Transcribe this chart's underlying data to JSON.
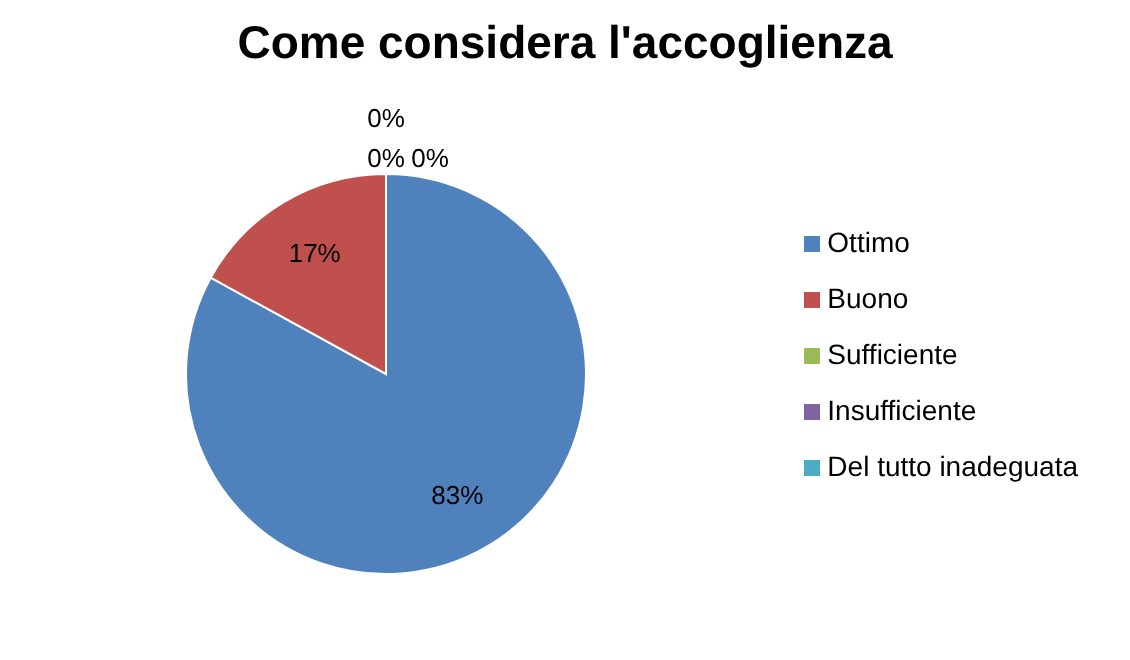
{
  "chart_data": {
    "type": "pie",
    "title": "Come considera l'accoglienza",
    "categories": [
      "Ottimo",
      "Buono",
      "Sufficiente",
      "Insufficiente",
      "Del tutto inadeguata"
    ],
    "values": [
      83,
      17,
      0,
      0,
      0
    ],
    "colors": [
      "#4f81bd",
      "#c0504d",
      "#9bbb59",
      "#8064a2",
      "#4bacc6"
    ],
    "value_labels": [
      "83%",
      "17%",
      "0%",
      "0%",
      "0%"
    ],
    "legend": "right"
  }
}
